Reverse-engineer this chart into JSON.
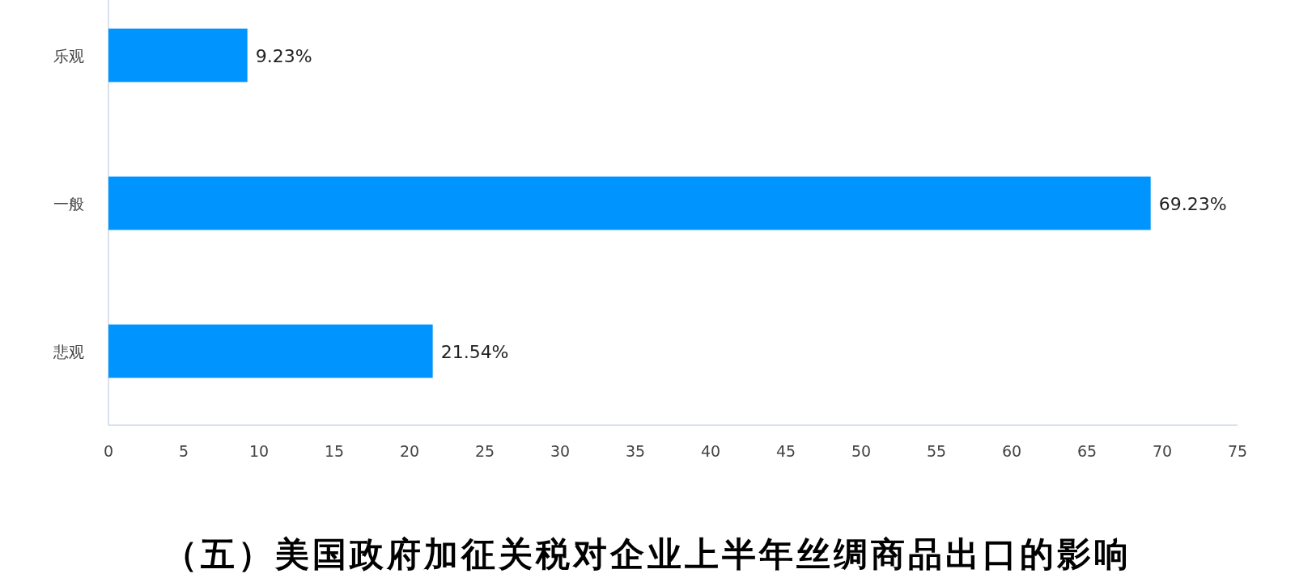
{
  "chart_data": {
    "type": "bar",
    "orientation": "horizontal",
    "title": "（五）美国政府加征关税对企业上半年丝绸商品出口的影响",
    "categories": [
      "乐观",
      "一般",
      "悲观"
    ],
    "values": [
      9.23,
      69.23,
      21.54
    ],
    "value_labels": [
      "9.23%",
      "69.23%",
      "21.54%"
    ],
    "color": "#0094ff",
    "xlim": [
      0,
      75
    ],
    "xticks": [
      0,
      5,
      10,
      15,
      20,
      25,
      30,
      35,
      40,
      45,
      50,
      55,
      60,
      65,
      70,
      75
    ],
    "grid": false,
    "legend": false
  }
}
